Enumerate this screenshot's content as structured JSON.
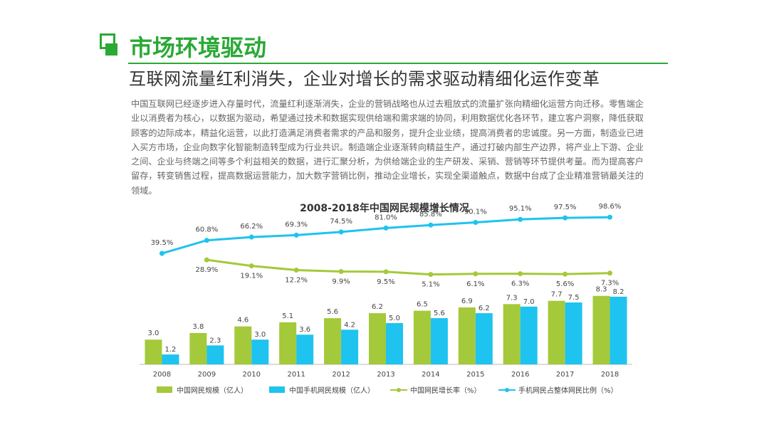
{
  "slide": {
    "title": "市场环境驱动",
    "subtitle": "互联网流量红利消失，企业对增长的需求驱动精细化运作变革",
    "body": "中国互联网已经逐步进入存量时代，流量红利逐渐消失，企业的营销战略也从过去粗放式的流量扩张向精细化运营方向迁移。零售端企业以消费者为核心，以数据为驱动，希望通过技术和数据实现供给端和需求端的协同，利用数据优化各环节，建立客户洞察，降低获取顾客的边际成本，精益化运营，以此打造满足消费者需求的产品和服务，提升企业业绩，提高消费者的忠诚度。另一方面，制造业已进入买方市场，企业向数字化智能制造转型成为行业共识。制造端企业逐渐转向精益生产，通过打破内部生产边界，将产业上下游、企业之间、企业与终端之间等多个利益相关的数据，进行汇聚分析，为供给端企业的生产研发、采销、营销等环节提供考量。而为提高客户留存，转变销售过程，提高数据运营能力，加大数字营销比例，推动企业增长，实现全渠道触点，数据中台成了企业精准营销最关注的领域。"
  },
  "colors": {
    "accent": "#2aa935",
    "green_series": "#a4c93a",
    "blue_series": "#1ec3ef"
  },
  "chart_data": {
    "type": "bar",
    "title": "2008-2018年中国网民规模增长情况",
    "categories": [
      "2008",
      "2009",
      "2010",
      "2011",
      "2012",
      "2013",
      "2014",
      "2015",
      "2016",
      "2017",
      "2018"
    ],
    "series": [
      {
        "name": "中国网民规模（亿人）",
        "kind": "bar",
        "values": [
          3.0,
          3.8,
          4.6,
          5.1,
          5.6,
          6.2,
          6.5,
          6.9,
          7.3,
          7.7,
          8.3
        ],
        "labels": [
          "3.0",
          "3.8",
          "4.6",
          "5.1",
          "5.6",
          "6.2",
          "6.5",
          "6.9",
          "7.3",
          "7.7",
          "8.3"
        ]
      },
      {
        "name": "中国手机网民规模（亿人）",
        "kind": "bar",
        "values": [
          1.2,
          2.3,
          3.0,
          3.6,
          4.2,
          5.0,
          5.6,
          6.2,
          7.0,
          7.5,
          8.2
        ],
        "labels": [
          "1.2",
          "2.3",
          "3.0",
          "3.6",
          "4.2",
          "5.0",
          "5.6",
          "6.2",
          "7.0",
          "7.5",
          "8.2"
        ]
      },
      {
        "name": "中国网民增长率（%）",
        "kind": "line",
        "values": [
          null,
          28.9,
          19.1,
          12.2,
          9.9,
          9.5,
          5.1,
          6.1,
          6.3,
          5.6,
          7.3
        ],
        "labels": [
          "",
          "28.9%",
          "19.1%",
          "12.2%",
          "9.9%",
          "9.5%",
          "5.1%",
          "6.1%",
          "6.3%",
          "5.6%",
          "7.3%"
        ]
      },
      {
        "name": "手机网民占整体网民比例（%）",
        "kind": "line",
        "values": [
          39.5,
          60.8,
          66.2,
          69.3,
          74.5,
          81.0,
          85.8,
          90.1,
          95.1,
          97.5,
          98.6
        ],
        "labels": [
          "39.5%",
          "60.8%",
          "66.2%",
          "69.3%",
          "74.5%",
          "81.0%",
          "85.8%",
          "90.1%",
          "95.1%",
          "97.5%",
          "98.6%"
        ]
      }
    ],
    "bar_ylim": [
      0,
      10
    ],
    "line_ylim": [
      0,
      100
    ],
    "legend_position": "bottom"
  }
}
